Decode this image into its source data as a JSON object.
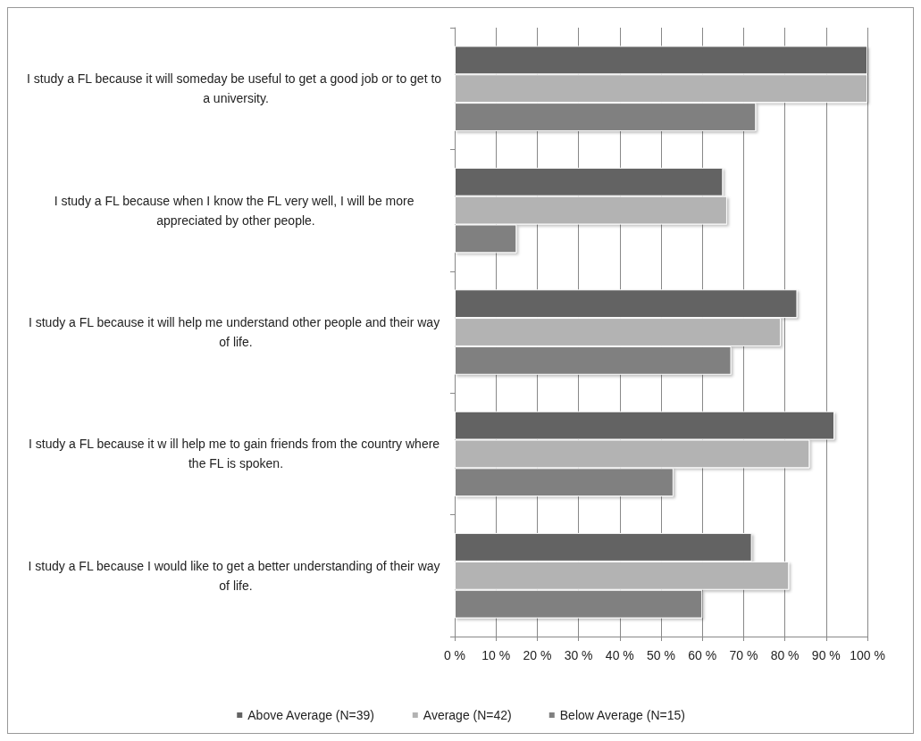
{
  "chart_data": {
    "type": "bar",
    "orientation": "horizontal",
    "categories": [
      "I study a FL because it will someday be useful to get a good job or to get to a university.",
      "I study a FL because when I know the FL very well, I will be more appreciated by other people.",
      "I study a FL because it will help me understand other people and their way of life.",
      "I study a FL because it w ill help me to gain friends from the country where the FL is spoken.",
      "I study a FL because I would like to get a better understanding of their way of life."
    ],
    "series": [
      {
        "name": "Above Average (N=39)",
        "color": "#636363",
        "values": [
          100,
          65,
          83,
          92,
          72
        ]
      },
      {
        "name": "Average (N=42)",
        "color": "#b3b3b3",
        "values": [
          100,
          66,
          79,
          86,
          81
        ]
      },
      {
        "name": "Below Average (N=15)",
        "color": "#808080",
        "values": [
          73,
          15,
          67,
          53,
          60
        ]
      }
    ],
    "xlim": [
      0,
      100
    ],
    "xticks": [
      {
        "value": 0,
        "label": "0 %"
      },
      {
        "value": 10,
        "label": "10 %"
      },
      {
        "value": 20,
        "label": "20 %"
      },
      {
        "value": 30,
        "label": "30 %"
      },
      {
        "value": 40,
        "label": "40 %"
      },
      {
        "value": 50,
        "label": "50 %"
      },
      {
        "value": 60,
        "label": "60 %"
      },
      {
        "value": 70,
        "label": "70 %"
      },
      {
        "value": 80,
        "label": "80 %"
      },
      {
        "value": 90,
        "label": "90 %"
      },
      {
        "value": 100,
        "label": "100 %"
      }
    ],
    "grid": "x",
    "legend": "bottom"
  }
}
